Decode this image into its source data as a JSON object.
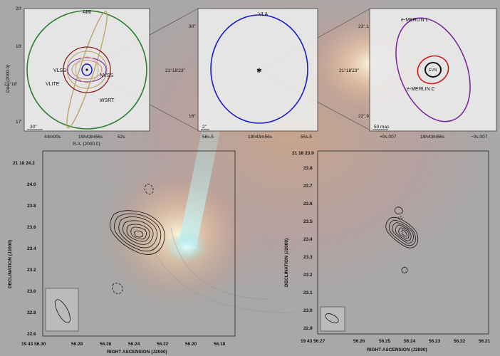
{
  "colors": {
    "background": "#a8a8a8",
    "panel_bg": "#ebebeb",
    "beam_green": "#2e7d32",
    "beam_blue": "#1a1acd",
    "beam_brown": "#8b2020",
    "beam_tan": "#b8a060",
    "beam_purple": "#7b2a9e",
    "beam_red": "#d01818",
    "beam_black": "#111111"
  },
  "panel1": {
    "labels": {
      "ami": "AMI",
      "vlss": "VLSS",
      "nvss": "NVSS",
      "vlite": "VLITE",
      "wsrt": "WSRT"
    },
    "y_ticks": [
      "20'",
      "19'",
      "21°18'",
      "17'"
    ],
    "x_ticks": [
      "44m00s",
      "19h43m56s",
      "52s"
    ],
    "xlabel": "R.A. (2000.0)",
    "ylabel": "Dec. (2000.0)",
    "scalebar": "30\""
  },
  "panel2": {
    "labels": {
      "vla": "VLA"
    },
    "y_ticks": [
      "30\"",
      "21°18'23\"",
      "16\""
    ],
    "x_ticks": [
      "56s.5",
      "19h43m56s",
      "55s.5"
    ],
    "scalebar": "2\""
  },
  "panel3": {
    "labels": {
      "emerlin_l": "e-MERLIN L",
      "evn": "EVN",
      "emerlin_c": "e-MERLIN C"
    },
    "y_ticks": [
      "23\".1",
      "21°18'23\"",
      "22\".9"
    ],
    "x_ticks": [
      "+0s.007",
      "19h43m56s",
      "−0s.007"
    ],
    "scalebar": "50 mas"
  },
  "panel4": {
    "title_tick": "21 18 24.2",
    "y_ticks": [
      "24.0",
      "23.8",
      "23.6",
      "23.4",
      "23.2",
      "23.0",
      "22.8",
      "22.6"
    ],
    "x_ticks": [
      "19 43 56.30",
      "56.28",
      "56.26",
      "56.24",
      "56.22",
      "56.20",
      "56.18"
    ],
    "xlabel": "RIGHT ASCENSION (J2000)",
    "ylabel": "DECLINATION (J2000)"
  },
  "panel5": {
    "title_tick": "21 18 23.9",
    "y_ticks": [
      "23.8",
      "23.7",
      "23.6",
      "23.5",
      "23.4",
      "23.3",
      "23.2",
      "23.1",
      "23.0",
      "22.9"
    ],
    "x_ticks": [
      "19 43 56.27",
      "56.26",
      "56.25",
      "56.24",
      "56.23",
      "56.22",
      "56.21"
    ],
    "xlabel": "RIGHT ASCENSION (J2000)",
    "ylabel": "DECLINATION (J2000)"
  }
}
